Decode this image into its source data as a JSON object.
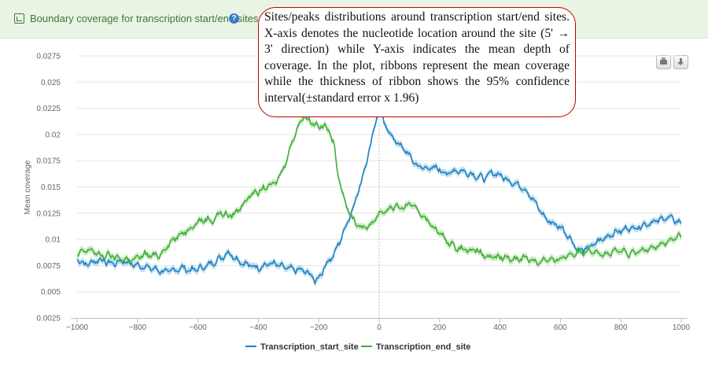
{
  "header": {
    "title": "Boundary coverage for transcription start/end sites",
    "help_icon": "question-circle-icon",
    "chart_icon": "area-chart-icon"
  },
  "callout": {
    "text": "Sites/peaks distributions around transcription start/end sites. X-axis denotes the nucleotide location around the site (5' → 3' direction) while Y-axis indicates the mean depth of coverage. In the plot, ribbons represent the mean coverage while the thickness of ribbon shows the 95% confidence interval(±standard error x 1.96)",
    "border_color": "#c00000"
  },
  "toolbar": {
    "print_icon": "printer-icon",
    "download_icon": "download-icon"
  },
  "chart_data": {
    "type": "line",
    "title": "Boundary coverage for transcription start/end sites",
    "xlabel": "",
    "ylabel": "Mean coverage",
    "xlim": [
      -1000,
      1000
    ],
    "ylim": [
      0.0025,
      0.0275
    ],
    "x_ticks": [
      -1000,
      -800,
      -600,
      -400,
      -200,
      0,
      200,
      400,
      600,
      800,
      1000
    ],
    "y_ticks": [
      0.0025,
      0.005,
      0.0075,
      0.01,
      0.0125,
      0.015,
      0.0175,
      0.02,
      0.0225,
      0.025,
      0.0275
    ],
    "x_tick_labels": [
      "−1000",
      "−800",
      "−600",
      "−400",
      "−200",
      "0",
      "200",
      "400",
      "600",
      "800",
      "1000"
    ],
    "y_tick_labels": [
      "0.0025",
      "0.005",
      "0.0075",
      "0.01",
      "0.0125",
      "0.015",
      "0.0175",
      "0.02",
      "0.0225",
      "0.025",
      "0.0275"
    ],
    "grid": true,
    "reference_line_x": 0,
    "legend_position": "bottom-center",
    "ribbon": "95% confidence interval (±standard error x 1.96)",
    "series": [
      {
        "name": "Transcription_start_site",
        "color": "#1f7fc3",
        "ribbon_color": "#a6d3ea",
        "x": [
          -1000,
          -975,
          -950,
          -925,
          -900,
          -875,
          -850,
          -825,
          -800,
          -775,
          -750,
          -725,
          -700,
          -675,
          -650,
          -625,
          -600,
          -575,
          -550,
          -525,
          -500,
          -475,
          -450,
          -425,
          -400,
          -375,
          -350,
          -325,
          -300,
          -275,
          -250,
          -225,
          -212,
          -200,
          -187,
          -175,
          -150,
          -125,
          -100,
          -75,
          -50,
          -25,
          -10,
          0,
          25,
          50,
          75,
          100,
          125,
          150,
          175,
          200,
          225,
          250,
          275,
          300,
          325,
          350,
          375,
          400,
          425,
          450,
          475,
          500,
          525,
          550,
          575,
          600,
          625,
          650,
          665,
          675,
          700,
          725,
          750,
          775,
          800,
          825,
          850,
          875,
          900,
          925,
          950,
          975,
          1000
        ],
        "y": [
          0.0082,
          0.0076,
          0.0078,
          0.0081,
          0.0078,
          0.0077,
          0.008,
          0.0077,
          0.0075,
          0.0074,
          0.0072,
          0.007,
          0.0069,
          0.0071,
          0.0073,
          0.007,
          0.0072,
          0.0074,
          0.0078,
          0.0082,
          0.0088,
          0.0082,
          0.0077,
          0.0075,
          0.0073,
          0.0076,
          0.0077,
          0.0074,
          0.0072,
          0.0071,
          0.007,
          0.0066,
          0.006,
          0.0064,
          0.007,
          0.0077,
          0.0085,
          0.0102,
          0.012,
          0.014,
          0.0165,
          0.0195,
          0.0215,
          0.0222,
          0.0206,
          0.0195,
          0.0188,
          0.018,
          0.017,
          0.0168,
          0.0168,
          0.0167,
          0.0162,
          0.0166,
          0.0165,
          0.0163,
          0.016,
          0.0158,
          0.0164,
          0.0161,
          0.0157,
          0.0153,
          0.015,
          0.0142,
          0.0131,
          0.012,
          0.0115,
          0.0112,
          0.0104,
          0.0093,
          0.0088,
          0.009,
          0.0093,
          0.0098,
          0.0102,
          0.0106,
          0.0108,
          0.0111,
          0.0111,
          0.0114,
          0.0116,
          0.0118,
          0.0121,
          0.0119,
          0.0115
        ]
      },
      {
        "name": "Transcription_end_site",
        "color": "#3fae3a",
        "ribbon_color": "#b7e1a9",
        "x": [
          -1000,
          -975,
          -950,
          -925,
          -900,
          -875,
          -850,
          -825,
          -800,
          -775,
          -750,
          -725,
          -700,
          -675,
          -650,
          -625,
          -600,
          -575,
          -550,
          -525,
          -500,
          -475,
          -450,
          -425,
          -400,
          -375,
          -350,
          -325,
          -300,
          -275,
          -250,
          -225,
          -200,
          -180,
          -160,
          -150,
          -140,
          -130,
          -120,
          -100,
          -75,
          -50,
          -25,
          0,
          25,
          50,
          75,
          100,
          125,
          150,
          175,
          200,
          225,
          250,
          275,
          300,
          325,
          350,
          375,
          400,
          425,
          450,
          475,
          500,
          525,
          550,
          575,
          600,
          625,
          650,
          675,
          700,
          725,
          750,
          775,
          800,
          825,
          850,
          875,
          900,
          925,
          950,
          975,
          1000
        ],
        "y": [
          0.0085,
          0.0089,
          0.009,
          0.0084,
          0.0085,
          0.0083,
          0.0081,
          0.008,
          0.0082,
          0.0086,
          0.0084,
          0.0085,
          0.0095,
          0.0101,
          0.0106,
          0.0111,
          0.0117,
          0.0119,
          0.0118,
          0.0126,
          0.0122,
          0.0125,
          0.0134,
          0.0143,
          0.0145,
          0.015,
          0.0152,
          0.0162,
          0.0182,
          0.0204,
          0.0218,
          0.0212,
          0.0208,
          0.0208,
          0.02,
          0.019,
          0.017,
          0.0155,
          0.0143,
          0.0125,
          0.0115,
          0.011,
          0.0115,
          0.0125,
          0.0128,
          0.0131,
          0.013,
          0.0133,
          0.0129,
          0.0121,
          0.0113,
          0.0106,
          0.0098,
          0.0093,
          0.0091,
          0.009,
          0.0089,
          0.0084,
          0.0082,
          0.0083,
          0.0082,
          0.0081,
          0.0083,
          0.0081,
          0.0078,
          0.0081,
          0.0079,
          0.0082,
          0.0085,
          0.0087,
          0.0088,
          0.009,
          0.0088,
          0.0085,
          0.0088,
          0.0089,
          0.0086,
          0.0087,
          0.009,
          0.0093,
          0.0094,
          0.0097,
          0.0101,
          0.0103
        ]
      }
    ]
  }
}
